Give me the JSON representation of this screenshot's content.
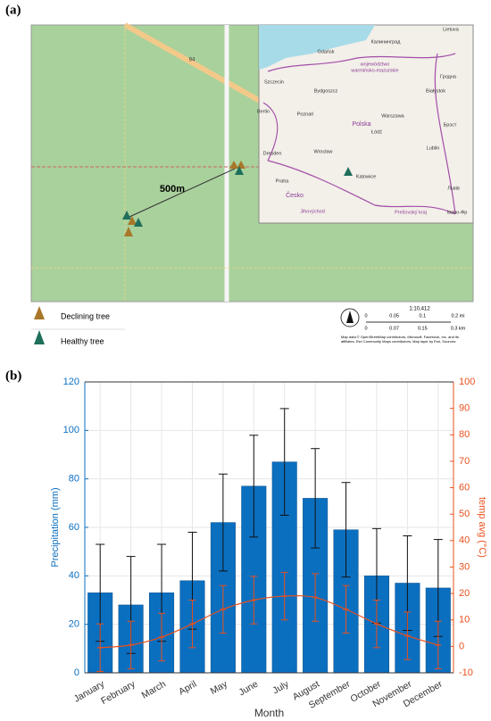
{
  "map": {
    "panel_label": "(a)",
    "distance_label": "500m",
    "road_label": "94",
    "inset_labels": [
      "Lietuva",
      "Калининград",
      "Gdańsk",
      "województwo",
      "warmińsko-mazurskie",
      "Гродна",
      "Szczecin",
      "Bydgoszcz",
      "Białystok",
      "Berlin",
      "Poznań",
      "Polska",
      "Warszawa",
      "Łódź",
      "Брэст",
      "Lublin",
      "Dresden",
      "Wrocław",
      "Katowice",
      "Praha",
      "Česko",
      "Львів",
      "Jihovýchod",
      "Prešovský kraj",
      "Івано-Фр"
    ],
    "legend": [
      "Declining tree",
      "Healthy tree"
    ],
    "scale": {
      "ratio": "1:10,412",
      "mi_ticks": [
        "0",
        "0.05",
        "0.1",
        "0.2 mi"
      ],
      "km_ticks": [
        "0",
        "0.07",
        "0.15",
        "0.3 km"
      ]
    },
    "attribution": [
      "Map data © OpenStreetMap contributors, Microsoft, Facebook, Inc. and its",
      "affiliates, Esri Community Maps contributors, Map layer by Esri, Sources:"
    ]
  },
  "chart_data": {
    "type": "bar",
    "panel_label": "(b)",
    "xlabel": "Month",
    "ylabel": "Precipitation (mm)",
    "y2label": "temp avg (°C)",
    "categories": [
      "January",
      "February",
      "March",
      "April",
      "May",
      "June",
      "July",
      "August",
      "September",
      "October",
      "November",
      "December"
    ],
    "series": [
      {
        "color": "#0b6fc0",
        "values": [
          33,
          28,
          33,
          38,
          62,
          77,
          87,
          72,
          59,
          40,
          37,
          35
        ],
        "errors": [
          20,
          20,
          20,
          20,
          20,
          21,
          22,
          20.5,
          19.5,
          19.5,
          19.5,
          20
        ]
      },
      {
        "type": "line",
        "axis": "y2",
        "color": "#e8501e",
        "values": [
          -0.5,
          0.5,
          3.5,
          8.5,
          14,
          17.5,
          19,
          18.5,
          14,
          8.5,
          4,
          0.5
        ],
        "errors": [
          9,
          9,
          9,
          9,
          9,
          9,
          9,
          9,
          9,
          9,
          9,
          9
        ]
      }
    ],
    "ylim": [
      0,
      120
    ],
    "yticks": [
      0,
      20,
      40,
      60,
      80,
      100,
      120
    ],
    "y2lim": [
      -10,
      100
    ],
    "y2ticks": [
      -10,
      0,
      10,
      20,
      30,
      40,
      50,
      60,
      70,
      80,
      90,
      100
    ],
    "grid": true
  }
}
